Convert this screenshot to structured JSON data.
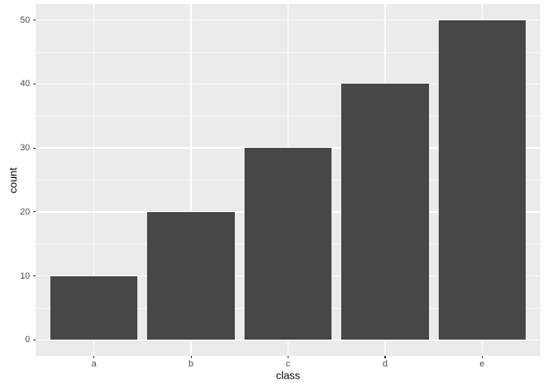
{
  "chart_data": {
    "type": "bar",
    "categories": [
      "a",
      "b",
      "c",
      "d",
      "e"
    ],
    "values": [
      10,
      20,
      30,
      40,
      50
    ],
    "title": "",
    "xlabel": "class",
    "ylabel": "count",
    "ylim": [
      0,
      50
    ],
    "yticks_major": [
      0,
      10,
      20,
      30,
      40,
      50
    ],
    "yticks_minor": [
      5,
      15,
      25,
      35,
      45
    ],
    "grid": "on",
    "legend": "none",
    "bar_width_fraction": 0.9,
    "style": "ggplot2-grey-theme",
    "colors": {
      "bar_fill": "#474747",
      "panel_background": "#EBEBEB",
      "gridline": "#FFFFFF",
      "tick_label": "#4D4D4D",
      "axis_title": "#000000",
      "tick_mark": "#333333",
      "page_background": "#FFFFFF"
    }
  }
}
